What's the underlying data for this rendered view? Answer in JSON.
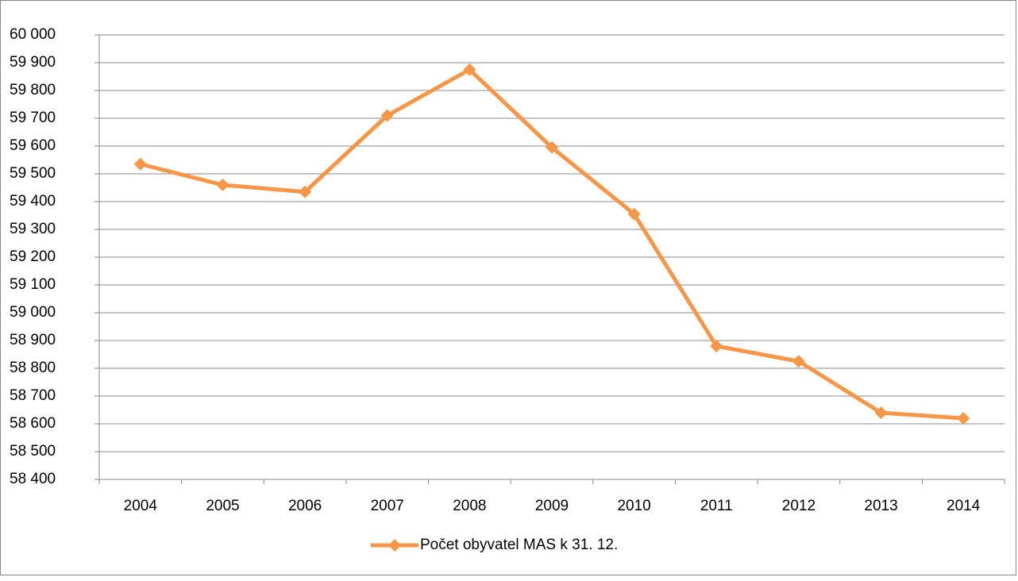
{
  "chart_data": {
    "type": "line",
    "categories": [
      "2004",
      "2005",
      "2006",
      "2007",
      "2008",
      "2009",
      "2010",
      "2011",
      "2012",
      "2013",
      "2014"
    ],
    "series": [
      {
        "name": "Počet obyvatel MAS k 31. 12.",
        "color": "#f79646",
        "values": [
          59535,
          59460,
          59435,
          59710,
          59875,
          59595,
          59355,
          58880,
          58825,
          58640,
          58620
        ]
      }
    ],
    "ylim": [
      58400,
      60000
    ],
    "yticks": [
      {
        "value": 58400,
        "label": "58 400"
      },
      {
        "value": 58500,
        "label": "58 500"
      },
      {
        "value": 58600,
        "label": "58 600"
      },
      {
        "value": 58700,
        "label": "58 700"
      },
      {
        "value": 58800,
        "label": "58 800"
      },
      {
        "value": 58900,
        "label": "58 900"
      },
      {
        "value": 59000,
        "label": "59 000"
      },
      {
        "value": 59100,
        "label": "59 100"
      },
      {
        "value": 59200,
        "label": "59 200"
      },
      {
        "value": 59300,
        "label": "59 300"
      },
      {
        "value": 59400,
        "label": "59 400"
      },
      {
        "value": 59500,
        "label": "59 500"
      },
      {
        "value": 59600,
        "label": "59 600"
      },
      {
        "value": 59700,
        "label": "59 700"
      },
      {
        "value": 59800,
        "label": "59 800"
      },
      {
        "value": 59900,
        "label": "59 900"
      },
      {
        "value": 60000,
        "label": "60 000"
      }
    ],
    "grid": true,
    "legend": "bottom"
  }
}
